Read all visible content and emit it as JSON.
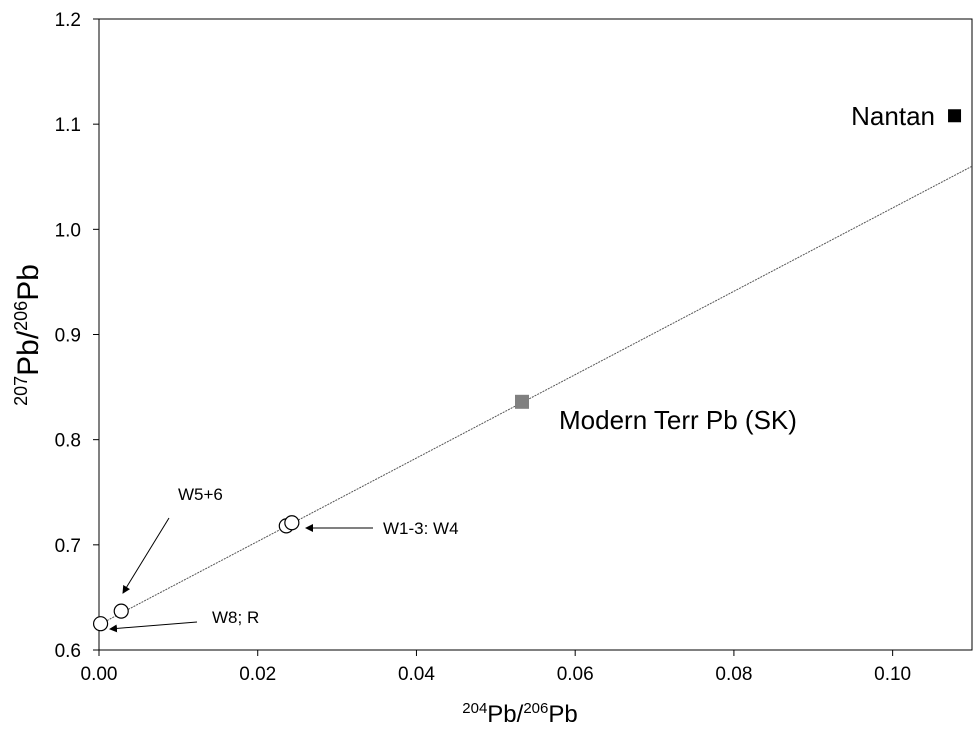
{
  "chart_data": {
    "type": "scatter",
    "xlabel": {
      "sup1": "204",
      "base1": "Pb/",
      "sup2": "206",
      "base2": "Pb"
    },
    "ylabel": {
      "sup1": "207",
      "base1": "Pb/",
      "sup2": "206",
      "base2": "Pb"
    },
    "xlim": [
      0,
      0.11
    ],
    "ylim": [
      0.6,
      1.2
    ],
    "x_ticks": [
      "0.00",
      "0.02",
      "0.04",
      "0.06",
      "0.08",
      "0.10"
    ],
    "y_ticks": [
      "0.6",
      "0.7",
      "0.8",
      "0.9",
      "1.0",
      "1.1",
      "1.2"
    ],
    "grid": false,
    "samples": [
      {
        "x": 0.0002,
        "y": 0.625
      },
      {
        "x": 0.0028,
        "y": 0.637
      },
      {
        "x": 0.0236,
        "y": 0.718
      },
      {
        "x": 0.0243,
        "y": 0.721
      }
    ],
    "modern_terr": {
      "label": "Modern Terr Pb (SK)",
      "x": 0.0533,
      "y": 0.836,
      "color": "#808080"
    },
    "nantan": {
      "label": "Nantan",
      "x": 0.1078,
      "y": 1.108,
      "color": "#000000"
    },
    "mixing_line": {
      "x": [
        0,
        0.11
      ],
      "y": [
        0.624,
        1.06
      ]
    },
    "annotations": {
      "w56": "W5+6",
      "w14": "W1-3: W4",
      "w8r": "W8; R"
    }
  }
}
